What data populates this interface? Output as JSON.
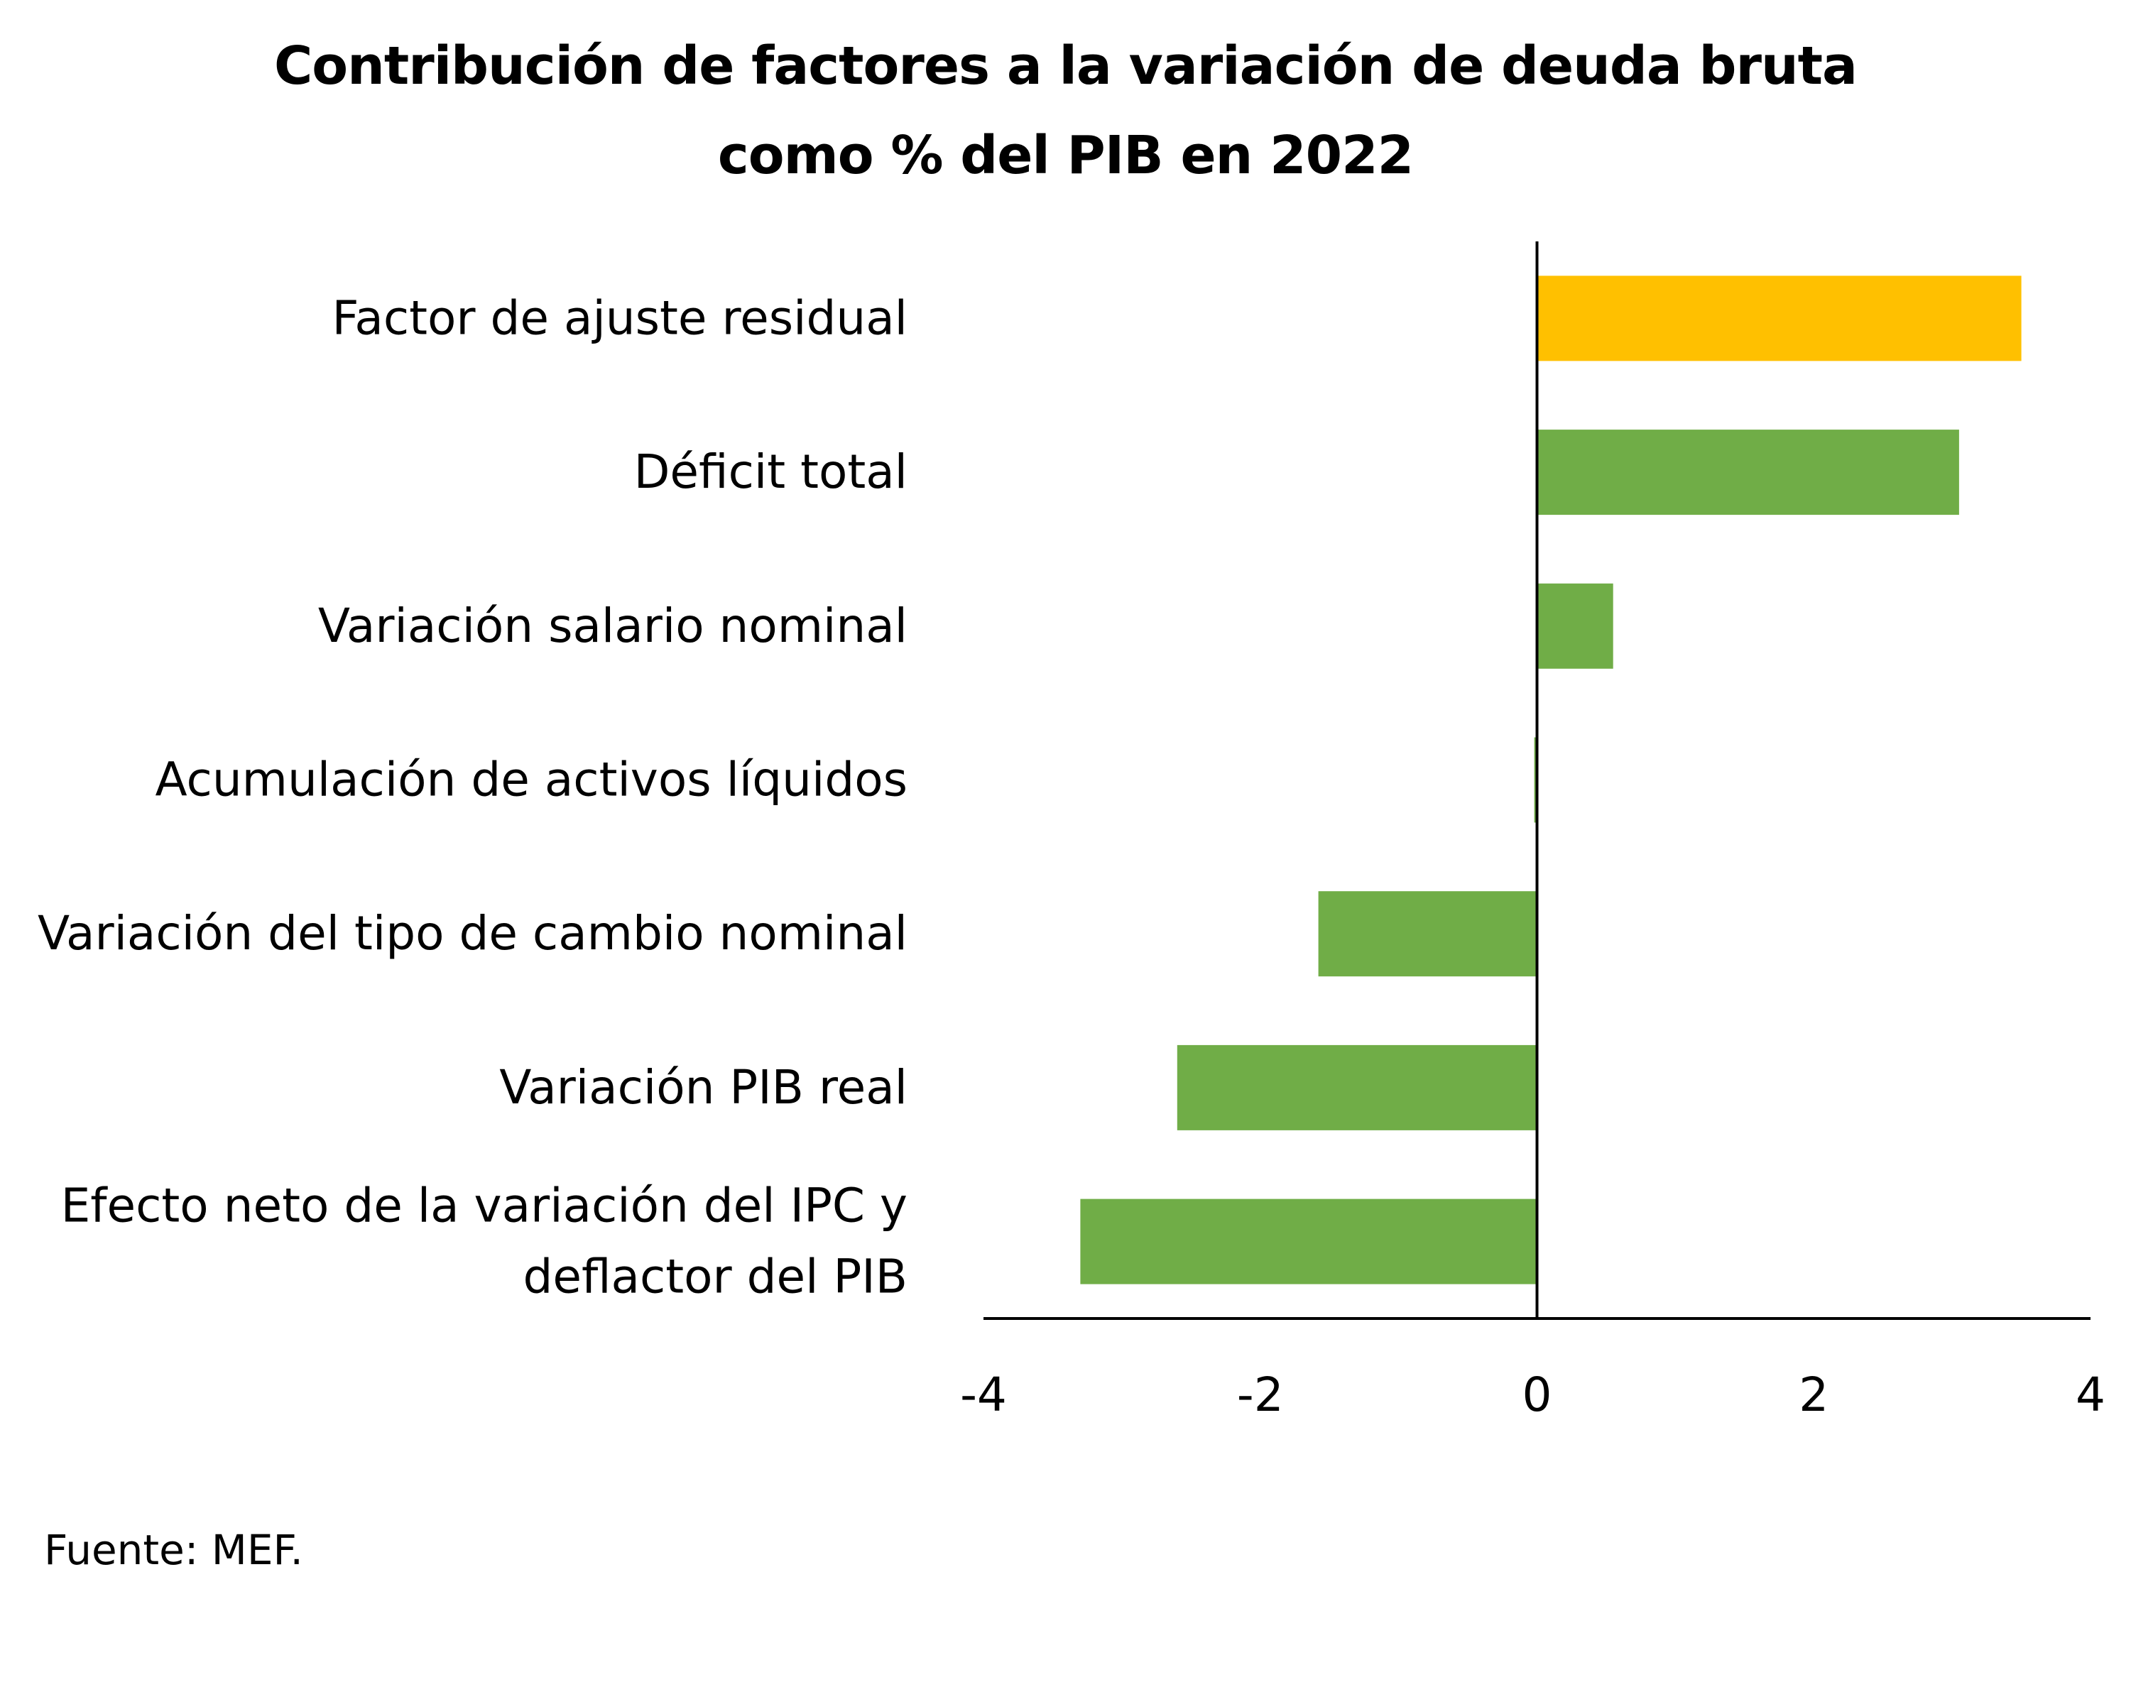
{
  "chart_data": {
    "type": "bar",
    "orientation": "horizontal",
    "title_lines": [
      "Contribución de factores a la variación de deuda bruta",
      "como % del PIB en 2022"
    ],
    "categories": [
      "Factor de ajuste residual",
      "Déficit total",
      "Variación salario nominal",
      "Acumulación de activos líquidos",
      "Variación del tipo de cambio nominal",
      "Variación PIB real",
      "Efecto neto de la variación del IPC y deflactor del PIB"
    ],
    "values": [
      3.5,
      3.05,
      0.55,
      -0.02,
      -1.58,
      -2.6,
      -3.3
    ],
    "bar_colors": [
      "#FFC000",
      "#70AD47",
      "#70AD47",
      "#70AD47",
      "#70AD47",
      "#70AD47",
      "#70AD47"
    ],
    "xlim": [
      -4,
      4
    ],
    "xticks": [
      -4,
      -2,
      0,
      2,
      4
    ],
    "xlabel": "",
    "ylabel": "",
    "grid": false,
    "legend": "none"
  },
  "source": "Fuente: MEF."
}
